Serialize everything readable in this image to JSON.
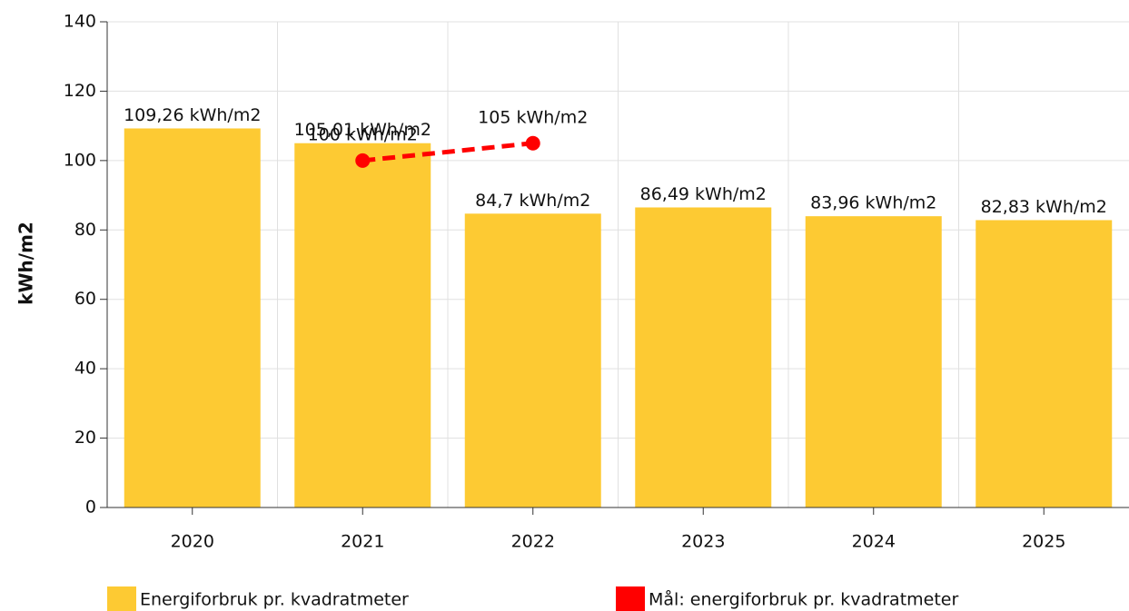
{
  "chart_data": {
    "type": "bar",
    "y_label": "kWh/m2",
    "categories": [
      "2020",
      "2021",
      "2022",
      "2023",
      "2024",
      "2025"
    ],
    "series": [
      {
        "name": "Energiforbruk pr. kvadratmeter",
        "type": "bar",
        "color": "#fdca33",
        "values": [
          109.26,
          105.01,
          84.7,
          86.49,
          83.96,
          82.83
        ],
        "value_labels": [
          "109,26 kWh/m2",
          "105,01 kWh/m2",
          "84,7 kWh/m2",
          "86,49 kWh/m2",
          "83,96 kWh/m2",
          "82,83 kWh/m2"
        ]
      },
      {
        "name": "Mål: energiforbruk pr. kvadratmeter",
        "type": "line",
        "color": "#ff0000",
        "values": [
          null,
          100,
          105,
          null,
          null,
          null
        ],
        "value_labels": [
          null,
          "100 kWh/m2",
          "105 kWh/m2",
          null,
          null,
          null
        ]
      }
    ],
    "ylim": [
      0,
      140
    ],
    "yticks": [
      0,
      20,
      40,
      60,
      80,
      100,
      120,
      140
    ],
    "grid": true
  }
}
